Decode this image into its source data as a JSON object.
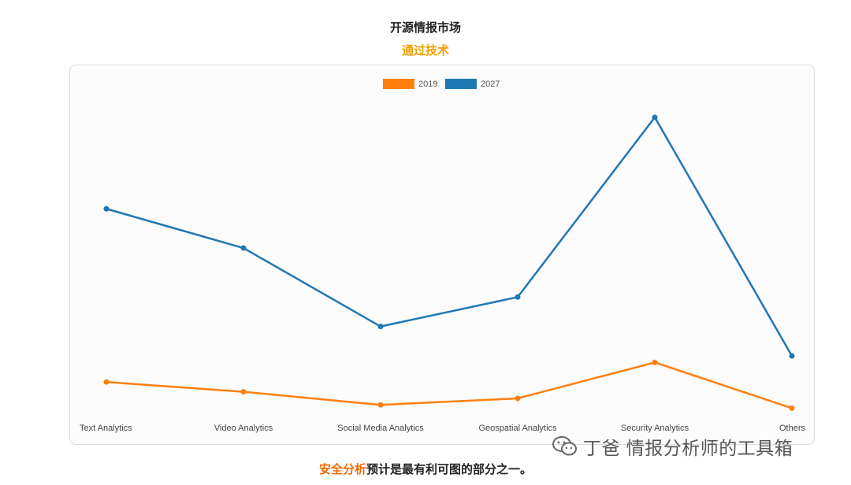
{
  "header": {
    "title": "开源情报市场",
    "subtitle": "通过技术"
  },
  "colors": {
    "subtitle": "#f0a000",
    "highlight": "#f56a00",
    "series_2019": "#ff7f0e",
    "series_2027": "#1f77b4"
  },
  "chart_data": {
    "type": "line",
    "categories": [
      "Text Analytics",
      "Video Analytics",
      "Social Media Analytics",
      "Geospatial Analytics",
      "Security Analytics",
      "Others"
    ],
    "series": [
      {
        "name": "2019",
        "color": "#ff7f0e",
        "values": [
          1.2,
          0.9,
          0.5,
          0.7,
          1.8,
          0.4
        ]
      },
      {
        "name": "2027",
        "color": "#1f77b4",
        "values": [
          6.5,
          5.3,
          2.9,
          3.8,
          9.3,
          2.0
        ]
      }
    ],
    "ylim": [
      0,
      10
    ],
    "grid": false,
    "legend": "top-center",
    "y_axis_labels": false
  },
  "watermark": {
    "icon": "wechat-icon",
    "text": "丁爸 情报分析师的工具箱"
  },
  "caption": {
    "highlight": "安全分析",
    "rest": "预计是最有利可图的部分之一。"
  }
}
